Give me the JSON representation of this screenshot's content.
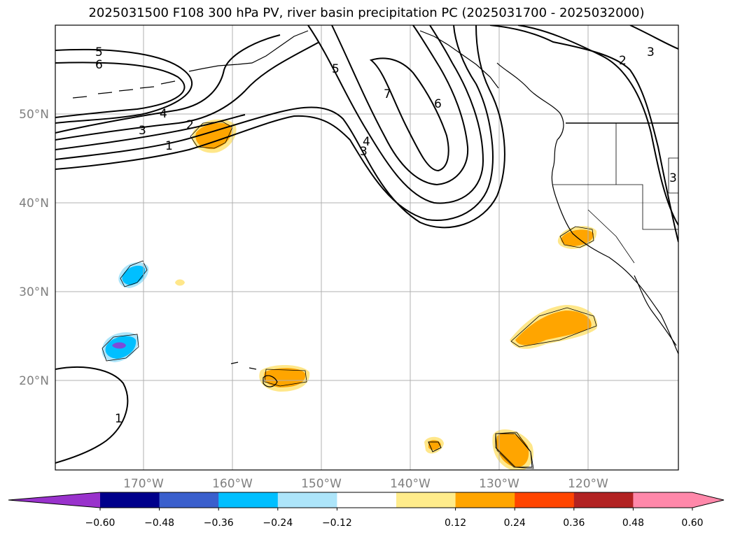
{
  "title": "2025031500 F108 300 hPa PV, river basin precipitation PC (2025031700 - 2025032000)",
  "map": {
    "lat_labels": [
      "50°N",
      "40°N",
      "30°N",
      "20°N"
    ],
    "lon_labels": [
      "170°W",
      "160°W",
      "150°W",
      "140°W",
      "130°W",
      "120°W"
    ],
    "pv_contour_labels": [
      "5",
      "6",
      "4",
      "3",
      "2",
      "1",
      "5",
      "7",
      "6",
      "4",
      "3",
      "2",
      "3",
      "3",
      "1"
    ],
    "shading_colors": {
      "orange": "#ffa500",
      "light_yellow": "#ffe78a",
      "cyan": "#00bfff",
      "blue": "#3b5fd1",
      "violet": "#7d4bd8"
    }
  },
  "colorbar": {
    "ticks": [
      "−0.60",
      "−0.48",
      "−0.36",
      "−0.24",
      "−0.12",
      "0.12",
      "0.24",
      "0.36",
      "0.48",
      "0.60"
    ],
    "colors": [
      "#9932cc",
      "#00008b",
      "#3a5fcd",
      "#00bfff",
      "#ade5fa",
      "#ffffff",
      "#ffec8b",
      "#ffa500",
      "#ff4500",
      "#b22222",
      "#ff88aa",
      "#ff88aa"
    ]
  }
}
